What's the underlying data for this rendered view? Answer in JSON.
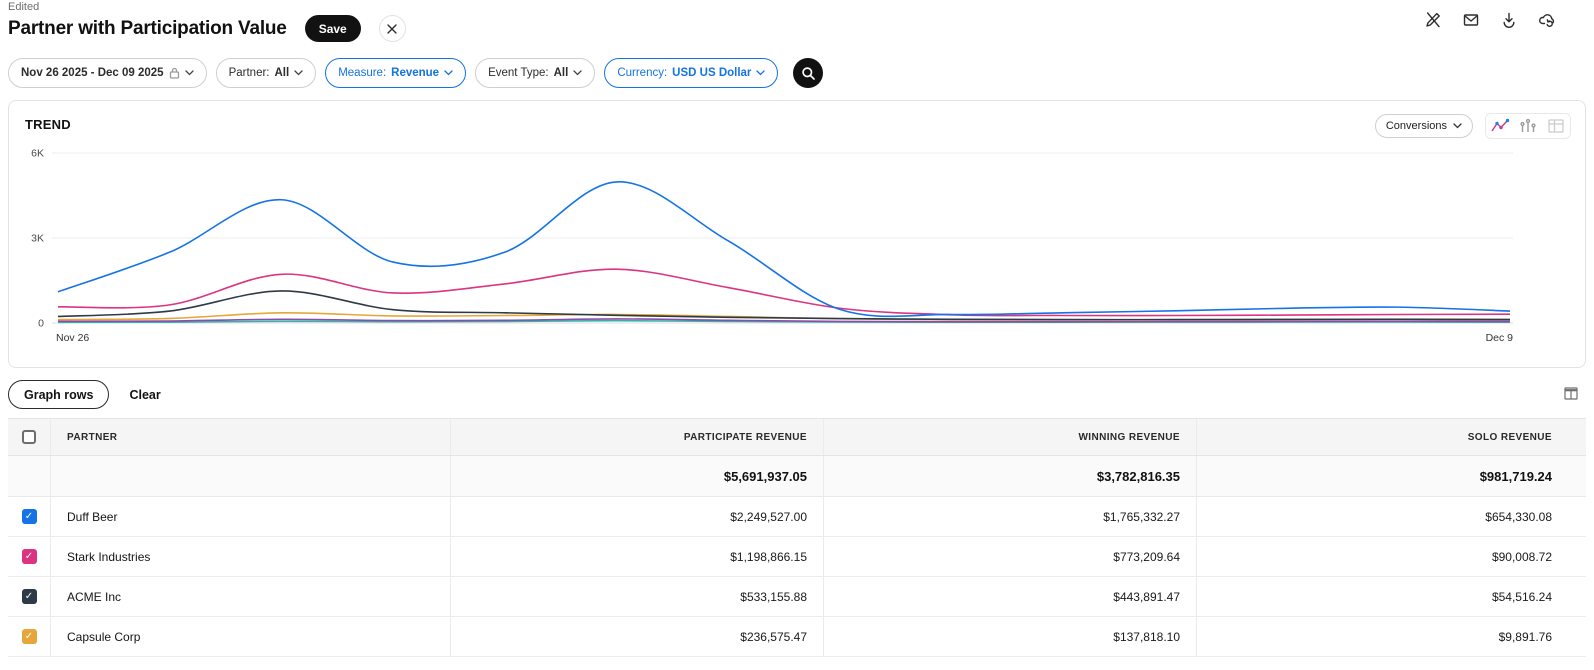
{
  "header": {
    "status": "Edited",
    "title": "Partner with Participation Value",
    "save_label": "Save"
  },
  "toolbar_icons": [
    "annotation-off",
    "email",
    "download",
    "cloud-sync"
  ],
  "filters": {
    "date_range": {
      "label": "Nov 26 2025 - Dec 09 2025",
      "locked": true
    },
    "pills": [
      {
        "label": "Partner:",
        "value": "All",
        "accent": false
      },
      {
        "label": "Measure:",
        "value": "Revenue",
        "accent": true
      },
      {
        "label": "Event Type:",
        "value": "All",
        "accent": false
      },
      {
        "label": "Currency:",
        "value": "USD US Dollar",
        "accent": true
      }
    ]
  },
  "chart_panel": {
    "title": "TREND",
    "metric_dropdown": "Conversions",
    "chart_types": [
      "line",
      "bar",
      "table"
    ],
    "active_chart_type": "line"
  },
  "chart_data": {
    "type": "line",
    "title": "TREND",
    "x": [
      "Nov 26",
      "Nov 27",
      "Nov 28",
      "Nov 29",
      "Nov 30",
      "Dec 1",
      "Dec 2",
      "Dec 3",
      "Dec 4",
      "Dec 5",
      "Dec 6",
      "Dec 7",
      "Dec 8",
      "Dec 9"
    ],
    "x_axis_labels_visible": [
      "Nov 26",
      "Dec 9"
    ],
    "ylim": [
      0,
      6000
    ],
    "yticks": [
      {
        "value": 0,
        "label": "0"
      },
      {
        "value": 3000,
        "label": "3K"
      },
      {
        "value": 6000,
        "label": "6K"
      }
    ],
    "grid": "horizontal",
    "legend": "none",
    "series": [
      {
        "name": "Duff Beer",
        "color": "#1473e6",
        "values": [
          1100,
          2500,
          4350,
          2150,
          2500,
          4980,
          2900,
          480,
          300,
          360,
          430,
          520,
          560,
          420
        ]
      },
      {
        "name": "Stark Industries",
        "color": "#dc3480",
        "values": [
          570,
          640,
          1720,
          1060,
          1380,
          1900,
          1250,
          520,
          290,
          265,
          265,
          280,
          300,
          310
        ]
      },
      {
        "name": "ACME Inc",
        "color": "#2e3a48",
        "values": [
          230,
          420,
          1130,
          470,
          360,
          270,
          200,
          155,
          130,
          120,
          120,
          125,
          130,
          120
        ]
      },
      {
        "name": "Capsule Corp",
        "color": "#e7a63a",
        "values": [
          120,
          160,
          360,
          250,
          265,
          300,
          230,
          150,
          115,
          110,
          115,
          125,
          135,
          130
        ]
      },
      {
        "name": "",
        "color": "#8b4daa",
        "values": [
          60,
          70,
          130,
          85,
          95,
          145,
          95,
          55,
          45,
          45,
          50,
          55,
          60,
          55
        ]
      },
      {
        "name": "",
        "color": "#36b2a8",
        "values": [
          25,
          30,
          60,
          45,
          55,
          80,
          55,
          35,
          30,
          30,
          32,
          35,
          36,
          30
        ]
      }
    ]
  },
  "table_toolbar": {
    "graph_rows_label": "Graph rows",
    "clear_label": "Clear"
  },
  "table": {
    "columns": [
      "PARTNER",
      "PARTICIPATE REVENUE",
      "WINNING REVENUE",
      "SOLO REVENUE"
    ],
    "totals": {
      "participate": "$5,691,937.05",
      "winning": "$3,782,816.35",
      "solo": "$981,719.24"
    },
    "rows": [
      {
        "partner": "Duff Beer",
        "checked": true,
        "color": "#1473e6",
        "participate": "$2,249,527.00",
        "winning": "$1,765,332.27",
        "solo": "$654,330.08"
      },
      {
        "partner": "Stark Industries",
        "checked": true,
        "color": "#dc3480",
        "participate": "$1,198,866.15",
        "winning": "$773,209.64",
        "solo": "$90,008.72"
      },
      {
        "partner": "ACME Inc",
        "checked": true,
        "color": "#2e3a48",
        "participate": "$533,155.88",
        "winning": "$443,891.47",
        "solo": "$54,516.24"
      },
      {
        "partner": "Capsule Corp",
        "checked": true,
        "color": "#e7a63a",
        "participate": "$236,575.47",
        "winning": "$137,818.10",
        "solo": "$9,891.76"
      }
    ]
  }
}
